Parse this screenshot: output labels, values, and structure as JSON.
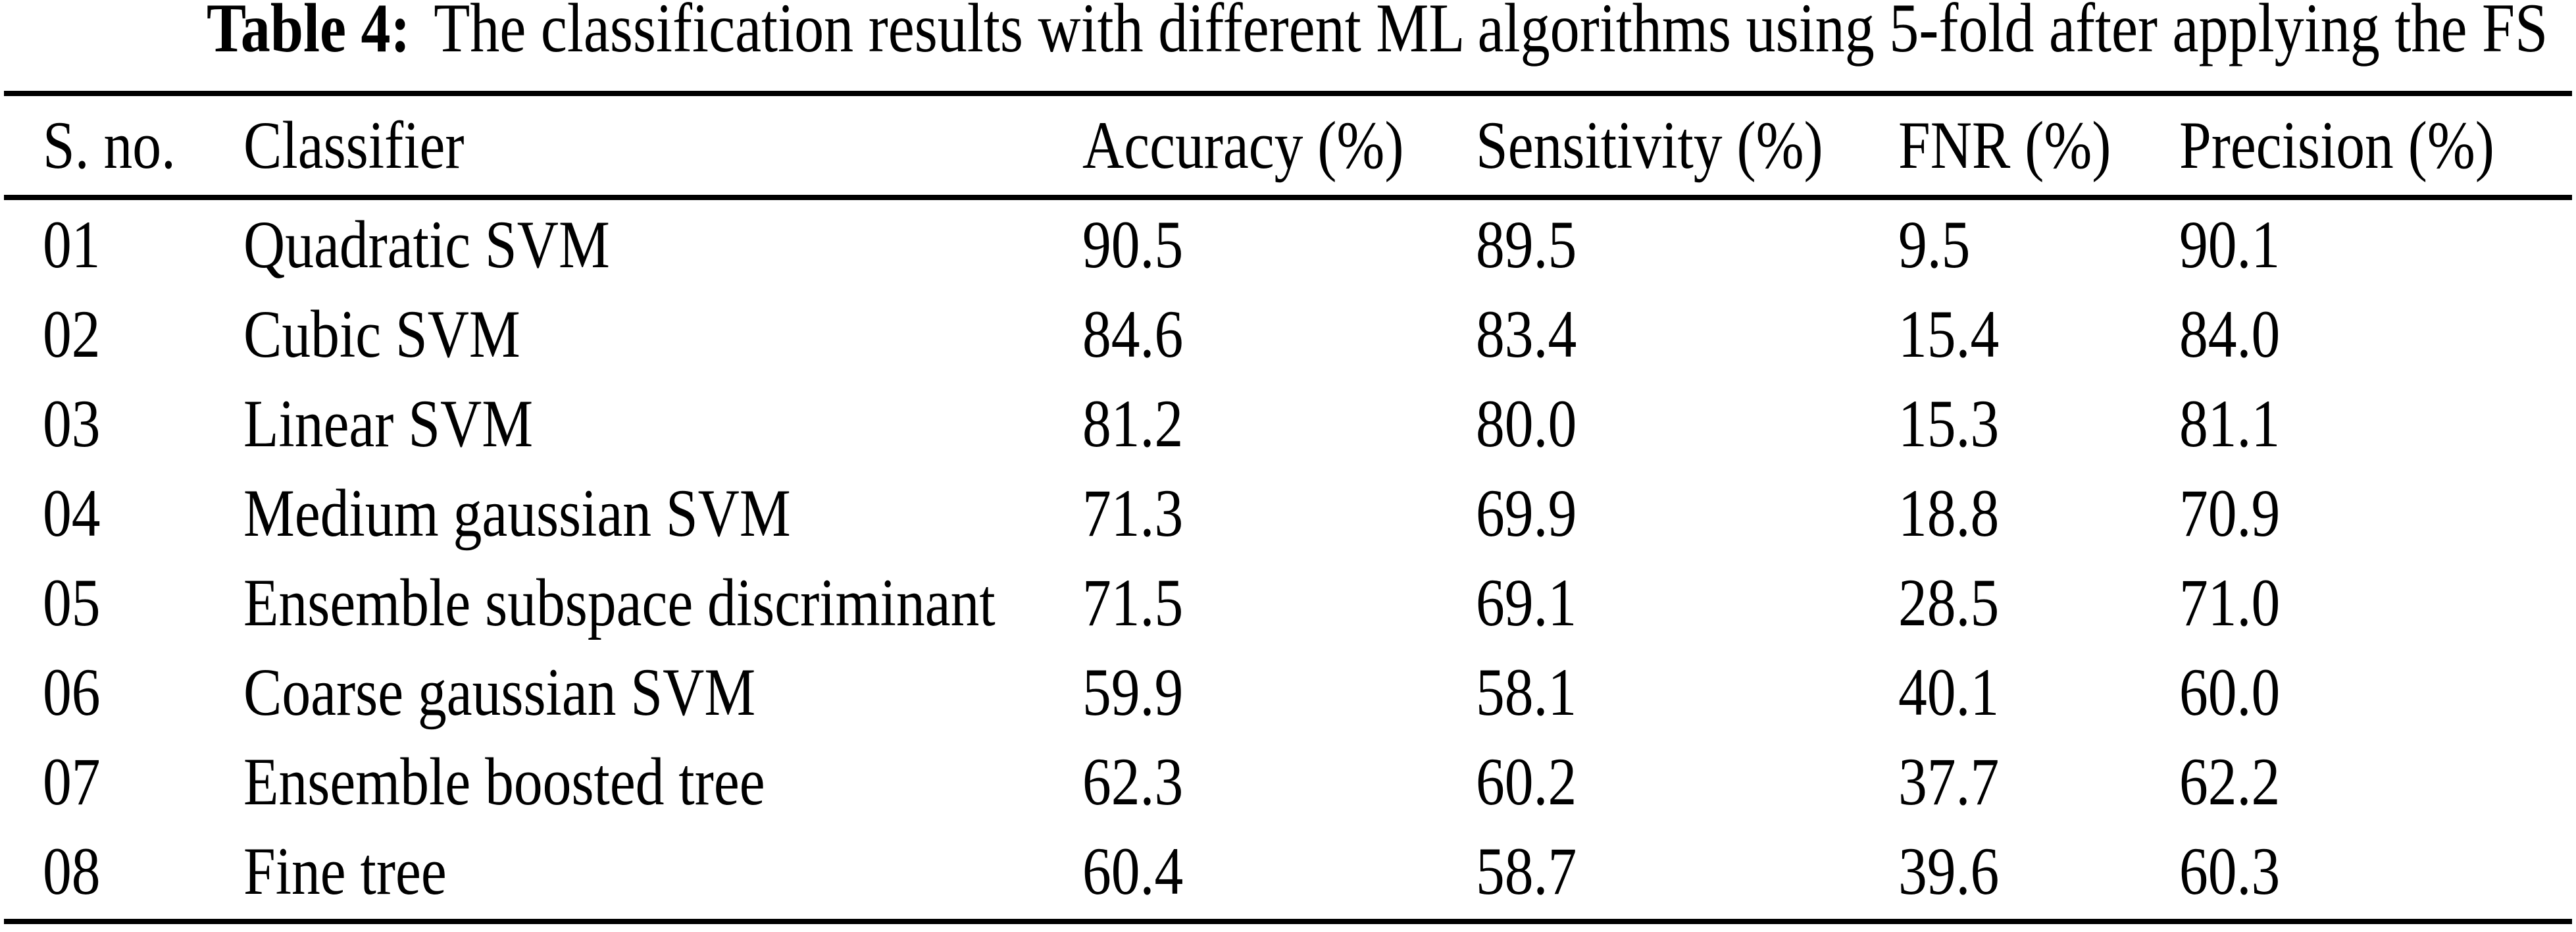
{
  "caption": {
    "label": "Table 4:",
    "text": "The classification results with different ML algorithms using 5-fold after applying the FS"
  },
  "table": {
    "headers": {
      "sno": "S. no.",
      "classifier": "Classifier",
      "accuracy": "Accuracy (%)",
      "sensitivity": "Sensitivity (%)",
      "fnr": "FNR (%)",
      "precision": "Precision (%)"
    },
    "rows": [
      {
        "sno": "01",
        "classifier": "Quadratic SVM",
        "accuracy": "90.5",
        "sensitivity": "89.5",
        "fnr": "9.5",
        "precision": "90.1"
      },
      {
        "sno": "02",
        "classifier": "Cubic SVM",
        "accuracy": "84.6",
        "sensitivity": "83.4",
        "fnr": "15.4",
        "precision": "84.0"
      },
      {
        "sno": "03",
        "classifier": "Linear SVM",
        "accuracy": "81.2",
        "sensitivity": "80.0",
        "fnr": "15.3",
        "precision": "81.1"
      },
      {
        "sno": "04",
        "classifier": "Medium gaussian SVM",
        "accuracy": "71.3",
        "sensitivity": "69.9",
        "fnr": "18.8",
        "precision": "70.9"
      },
      {
        "sno": "05",
        "classifier": "Ensemble subspace discriminant",
        "accuracy": "71.5",
        "sensitivity": "69.1",
        "fnr": "28.5",
        "precision": "71.0"
      },
      {
        "sno": "06",
        "classifier": "Coarse gaussian SVM",
        "accuracy": "59.9",
        "sensitivity": "58.1",
        "fnr": "40.1",
        "precision": "60.0"
      },
      {
        "sno": "07",
        "classifier": "Ensemble boosted tree",
        "accuracy": "62.3",
        "sensitivity": "60.2",
        "fnr": "37.7",
        "precision": "62.2"
      },
      {
        "sno": "08",
        "classifier": "Fine tree",
        "accuracy": "60.4",
        "sensitivity": "58.7",
        "fnr": "39.6",
        "precision": "60.3"
      }
    ]
  },
  "colors": {
    "text": "#000000",
    "background": "#ffffff",
    "rule": "#000000"
  }
}
